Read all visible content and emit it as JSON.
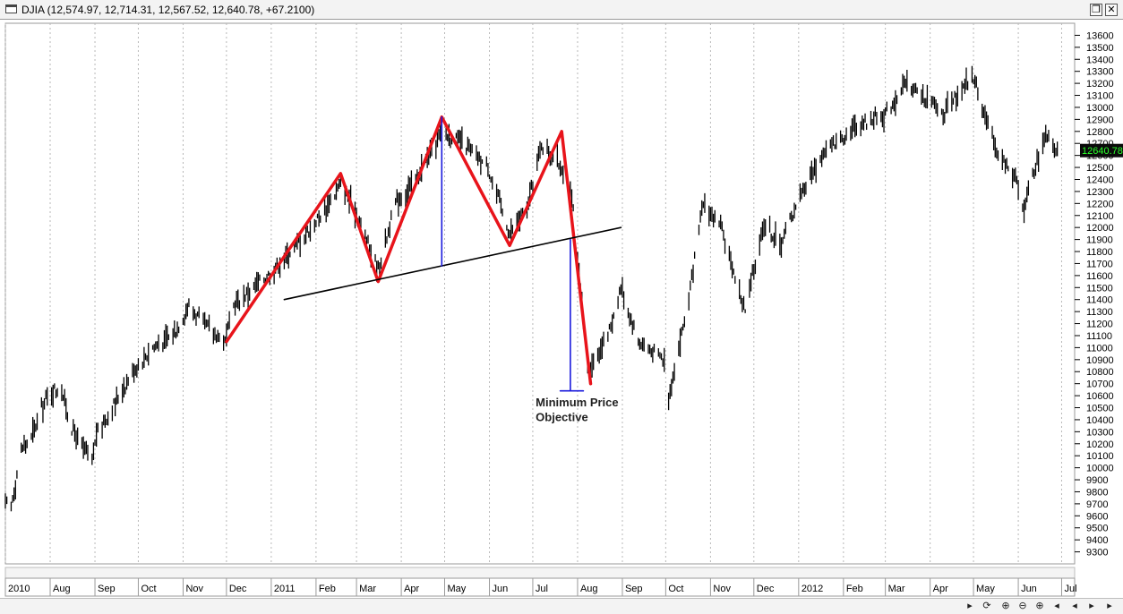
{
  "window": {
    "title": "DJIA (12,574.97, 12,714.31, 12,567.52, 12,640.78, +67.2100)",
    "restore_icon": "restore-icon",
    "close_icon": "close-icon"
  },
  "chart_data": {
    "type": "line",
    "symbol": "DJIA",
    "title": "DJIA (12,574.97, 12,714.31, 12,567.52, 12,640.78, +67.2100)",
    "xlabel": "",
    "ylabel": "",
    "ylim": [
      9200,
      13700
    ],
    "y_ticks": [
      9300,
      9400,
      9500,
      9600,
      9700,
      9800,
      9900,
      10000,
      10100,
      10200,
      10300,
      10400,
      10500,
      10600,
      10700,
      10800,
      10900,
      11000,
      11100,
      11200,
      11300,
      11400,
      11500,
      11600,
      11700,
      11800,
      11900,
      12000,
      12100,
      12200,
      12300,
      12400,
      12500,
      12600,
      12700,
      12800,
      12900,
      13000,
      13100,
      13200,
      13300,
      13400,
      13500,
      13600
    ],
    "x_range": [
      "2010-07-01",
      "2012-07-10"
    ],
    "x_ticks": [
      {
        "date": "2010-07-01",
        "label": "2010"
      },
      {
        "date": "2010-08-01",
        "label": "Aug"
      },
      {
        "date": "2010-09-01",
        "label": "Sep"
      },
      {
        "date": "2010-10-01",
        "label": "Oct"
      },
      {
        "date": "2010-11-01",
        "label": "Nov"
      },
      {
        "date": "2010-12-01",
        "label": "Dec"
      },
      {
        "date": "2011-01-01",
        "label": "2011"
      },
      {
        "date": "2011-02-01",
        "label": "Feb"
      },
      {
        "date": "2011-03-01",
        "label": "Mar"
      },
      {
        "date": "2011-04-01",
        "label": "Apr"
      },
      {
        "date": "2011-05-01",
        "label": "May"
      },
      {
        "date": "2011-06-01",
        "label": "Jun"
      },
      {
        "date": "2011-07-01",
        "label": "Jul"
      },
      {
        "date": "2011-08-01",
        "label": "Aug"
      },
      {
        "date": "2011-09-01",
        "label": "Sep"
      },
      {
        "date": "2011-10-01",
        "label": "Oct"
      },
      {
        "date": "2011-11-01",
        "label": "Nov"
      },
      {
        "date": "2011-12-01",
        "label": "Dec"
      },
      {
        "date": "2012-01-01",
        "label": "2012"
      },
      {
        "date": "2012-02-01",
        "label": "Feb"
      },
      {
        "date": "2012-03-01",
        "label": "Mar"
      },
      {
        "date": "2012-04-01",
        "label": "Apr"
      },
      {
        "date": "2012-05-01",
        "label": "May"
      },
      {
        "date": "2012-06-01",
        "label": "Jun"
      },
      {
        "date": "2012-07-01",
        "label": "Jul"
      }
    ],
    "last_price_label": "12640.78",
    "grid": "vertical-dashed",
    "series": [
      {
        "style": "ohlc-daily",
        "points": [
          [
            "2010-07-01",
            9700
          ],
          [
            "2010-07-05",
            9680
          ],
          [
            "2010-07-12",
            10150
          ],
          [
            "2010-07-19",
            10250
          ],
          [
            "2010-07-26",
            10500
          ],
          [
            "2010-08-02",
            10650
          ],
          [
            "2010-08-09",
            10640
          ],
          [
            "2010-08-16",
            10330
          ],
          [
            "2010-08-23",
            10180
          ],
          [
            "2010-08-30",
            10050
          ],
          [
            "2010-09-02",
            10280
          ],
          [
            "2010-09-13",
            10500
          ],
          [
            "2010-09-27",
            10800
          ],
          [
            "2010-10-11",
            11000
          ],
          [
            "2010-10-25",
            11100
          ],
          [
            "2010-11-05",
            11350
          ],
          [
            "2010-11-15",
            11200
          ],
          [
            "2010-11-30",
            11050
          ],
          [
            "2010-12-06",
            11350
          ],
          [
            "2010-12-20",
            11500
          ],
          [
            "2011-01-03",
            11650
          ],
          [
            "2011-01-18",
            11850
          ],
          [
            "2011-02-01",
            12050
          ],
          [
            "2011-02-18",
            12350
          ],
          [
            "2011-02-28",
            12150
          ],
          [
            "2011-03-16",
            11650
          ],
          [
            "2011-03-28",
            12200
          ],
          [
            "2011-04-11",
            12400
          ],
          [
            "2011-04-29",
            12800
          ],
          [
            "2011-05-13",
            12700
          ],
          [
            "2011-05-31",
            12500
          ],
          [
            "2011-06-15",
            11950
          ],
          [
            "2011-06-27",
            12150
          ],
          [
            "2011-07-07",
            12700
          ],
          [
            "2011-07-21",
            12500
          ],
          [
            "2011-07-29",
            12150
          ],
          [
            "2011-08-08",
            10810
          ],
          [
            "2011-08-22",
            11100
          ],
          [
            "2011-08-31",
            11500
          ],
          [
            "2011-09-12",
            11050
          ],
          [
            "2011-09-30",
            10900
          ],
          [
            "2011-10-03",
            10600
          ],
          [
            "2011-10-17",
            11400
          ],
          [
            "2011-10-27",
            12200
          ],
          [
            "2011-11-08",
            12000
          ],
          [
            "2011-11-25",
            11300
          ],
          [
            "2011-12-08",
            12050
          ],
          [
            "2011-12-19",
            11850
          ],
          [
            "2012-01-03",
            12300
          ],
          [
            "2012-01-20",
            12650
          ],
          [
            "2012-02-10",
            12850
          ],
          [
            "2012-03-01",
            12950
          ],
          [
            "2012-03-16",
            13200
          ],
          [
            "2012-04-10",
            12950
          ],
          [
            "2012-05-01",
            13250
          ],
          [
            "2012-05-15",
            12700
          ],
          [
            "2012-06-01",
            12350
          ],
          [
            "2012-06-04",
            12150
          ],
          [
            "2012-06-20",
            12800
          ],
          [
            "2012-06-29",
            12640.78
          ]
        ]
      }
    ],
    "pattern_lines": [
      {
        "color": "#e8141b",
        "points": [
          [
            "2010-12-01",
            11050
          ],
          [
            "2011-02-18",
            12450
          ],
          [
            "2011-03-16",
            11550
          ],
          [
            "2011-04-29",
            12920
          ],
          [
            "2011-06-15",
            11850
          ],
          [
            "2011-07-21",
            12800
          ],
          [
            "2011-08-10",
            10700
          ]
        ]
      },
      {
        "color": "#000000",
        "points": [
          [
            "2011-01-10",
            11400
          ],
          [
            "2011-08-31",
            12000
          ]
        ]
      },
      {
        "color": "#1a1adc",
        "points": [
          [
            "2011-04-29",
            12920
          ],
          [
            "2011-04-29",
            11680
          ]
        ]
      },
      {
        "color": "#1a1adc",
        "points": [
          [
            "2011-07-27",
            11900
          ],
          [
            "2011-07-27",
            10640
          ]
        ]
      },
      {
        "color": "#1a1adc",
        "points": [
          [
            "2011-07-20",
            10640
          ],
          [
            "2011-08-05",
            10640
          ]
        ]
      }
    ],
    "annotations": [
      {
        "text": "Minimum Price",
        "date": "2011-07-03",
        "value": 10510
      },
      {
        "text": "Objective",
        "date": "2011-07-03",
        "value": 10390
      }
    ]
  }
}
